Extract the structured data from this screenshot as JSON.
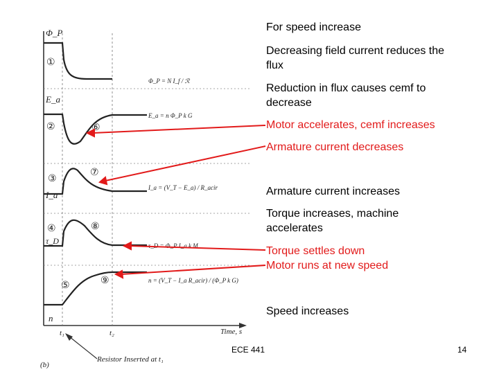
{
  "slide": {
    "footer_left": "ECE 441",
    "page_number": "14",
    "arrow_color": "#e21a1a"
  },
  "annotations": [
    {
      "lines": [
        "For speed increase"
      ],
      "color": "#000000"
    },
    {
      "lines": [
        "Decreasing field current reduces the",
        "flux"
      ],
      "color": "#000000"
    },
    {
      "lines": [
        "Reduction in flux causes cemf to",
        "decrease"
      ],
      "color": "#000000"
    },
    {
      "lines": [
        "Motor accelerates, cemf increases"
      ],
      "color": "#e21a1a"
    },
    {
      "lines": [
        "Armature current decreases"
      ],
      "color": "#e21a1a"
    },
    {
      "lines": [
        "Armature current increases"
      ],
      "color": "#000000"
    },
    {
      "lines": [
        "Torque increases, machine",
        "accelerates"
      ],
      "color": "#000000"
    },
    {
      "lines": [
        "Torque settles down",
        "Motor runs at new speed"
      ],
      "color": "#e21a1a"
    },
    {
      "lines": [
        "Speed increases"
      ],
      "color": "#000000"
    }
  ],
  "figure": {
    "axis_labels": [
      "Φ_P",
      "E_a",
      "I_a",
      "τ_D",
      "n"
    ],
    "time_label": "Time, s",
    "t1": "t₁",
    "t2": "t₂",
    "bottom_caption": "Resistor Inserted at t₁",
    "panel_label": "(b)",
    "circled_numbers": [
      "①",
      "②",
      "③",
      "④",
      "⑤",
      "⑥",
      "⑦",
      "⑧",
      "⑨"
    ],
    "equations": [
      "Φ_P = N I_f / ℛ",
      "E_a = n Φ_P k G",
      "I_a = (V_T − E_a) / R_acir",
      "τ_D = Φ_P I_a k M",
      "n = (V_T − I_a R_acir) / (Φ_P k G)"
    ]
  }
}
